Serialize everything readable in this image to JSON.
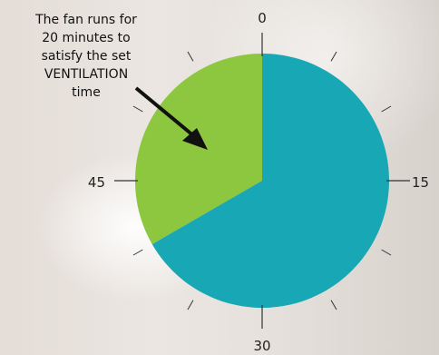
{
  "annotation": {
    "text": "The fan runs for\n20 minutes  to\nsatisfy the set\nVENTILATION\ntime"
  },
  "dial": {
    "labels": {
      "top": "0",
      "right": "15",
      "bottom": "30",
      "left": "45"
    },
    "segments": [
      {
        "name": "ventilation-on",
        "start_minute": 40,
        "end_minute": 60,
        "color": "#8dc63f"
      },
      {
        "name": "ventilation-off",
        "start_minute": 0,
        "end_minute": 40,
        "color": "#17a7b5"
      }
    ],
    "arrow_color": "#111111"
  }
}
